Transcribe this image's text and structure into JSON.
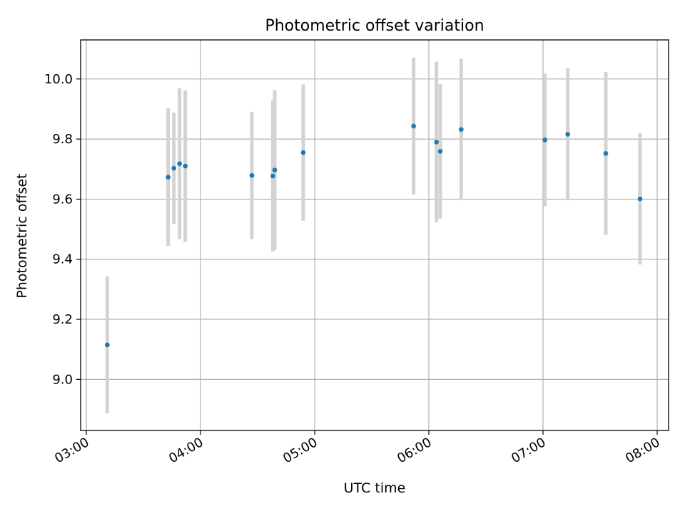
{
  "chart_data": {
    "type": "scatter",
    "title": "Photometric offset variation",
    "xlabel": "UTC time",
    "ylabel": "Photometric offset",
    "xlim": [
      "02:57",
      "08:06"
    ],
    "ylim": [
      8.83,
      10.13
    ],
    "x_ticks": [
      "03:00",
      "04:00",
      "05:00",
      "06:00",
      "07:00",
      "08:00"
    ],
    "y_ticks": [
      "9.0",
      "9.2",
      "9.4",
      "9.6",
      "9.8",
      "10.0"
    ],
    "grid": true,
    "marker_color": "#1f77b4",
    "errorbar_color": "#d3d3d3",
    "grid_color": "#b0b0b0",
    "points": [
      {
        "x": "03:11",
        "y": 9.115,
        "err": 0.228
      },
      {
        "x": "03:43",
        "y": 9.673,
        "err": 0.229
      },
      {
        "x": "03:46",
        "y": 9.703,
        "err": 0.185
      },
      {
        "x": "03:49",
        "y": 9.718,
        "err": 0.251
      },
      {
        "x": "03:52",
        "y": 9.71,
        "err": 0.252
      },
      {
        "x": "04:27",
        "y": 9.679,
        "err": 0.212
      },
      {
        "x": "04:38",
        "y": 9.677,
        "err": 0.251
      },
      {
        "x": "04:39",
        "y": 9.697,
        "err": 0.266
      },
      {
        "x": "04:54",
        "y": 9.755,
        "err": 0.227
      },
      {
        "x": "05:52",
        "y": 9.843,
        "err": 0.228
      },
      {
        "x": "06:04",
        "y": 9.79,
        "err": 0.267
      },
      {
        "x": "06:06",
        "y": 9.759,
        "err": 0.224
      },
      {
        "x": "06:17",
        "y": 9.832,
        "err": 0.235
      },
      {
        "x": "07:01",
        "y": 9.797,
        "err": 0.221
      },
      {
        "x": "07:13",
        "y": 9.816,
        "err": 0.22
      },
      {
        "x": "07:33",
        "y": 9.752,
        "err": 0.271
      },
      {
        "x": "07:51",
        "y": 9.601,
        "err": 0.219
      }
    ]
  }
}
